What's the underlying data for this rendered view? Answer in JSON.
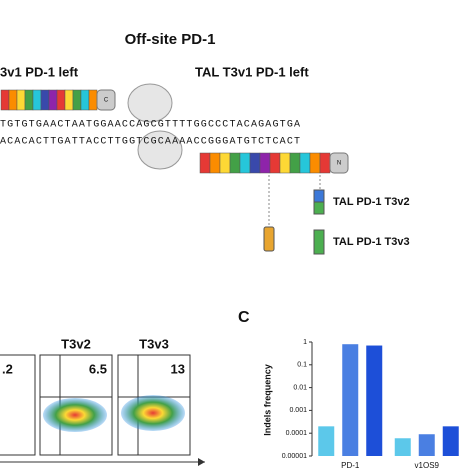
{
  "diagram": {
    "title": "Off-site PD-1",
    "left_label": "3v1 PD-1 left",
    "right_label": "TAL T3v1 PD-1 left",
    "sequence_top": "TGTGTGAACTAATGGAACCAGCGTTTTGGCCCTACAGAGTGA",
    "sequence_bottom": "ACACACTTGATTACCTTGGTCGCAAAACCGGGATGTCTCACT",
    "variant_labels": [
      "TAL PD-1 T3v2",
      "TAL PD-1 T3v3"
    ]
  },
  "flow": {
    "panels": [
      {
        "value_label": ".2"
      },
      {
        "title": "T3v2",
        "value_label": "6.5"
      },
      {
        "title": "T3v3",
        "value_label": "13"
      }
    ]
  },
  "chart_data": {
    "type": "bar",
    "panel_label": "C",
    "y_label": "Indels frequency",
    "log_scale": true,
    "categories": [
      "PD-1",
      "v1OS9"
    ],
    "series": [
      {
        "color": "#5cc8ea",
        "values": [
          0.0002,
          6e-05
        ]
      },
      {
        "color": "#4a7fe2",
        "values": [
          0.8,
          9e-05
        ]
      },
      {
        "color": "#1d4fd8",
        "values": [
          0.7,
          0.0002
        ]
      }
    ],
    "ylim": [
      1e-05,
      1
    ],
    "yticks": [
      {
        "value": 1e-05,
        "label": "0.00001"
      },
      0.0001,
      0.001,
      0.01,
      0.1,
      1
    ]
  }
}
